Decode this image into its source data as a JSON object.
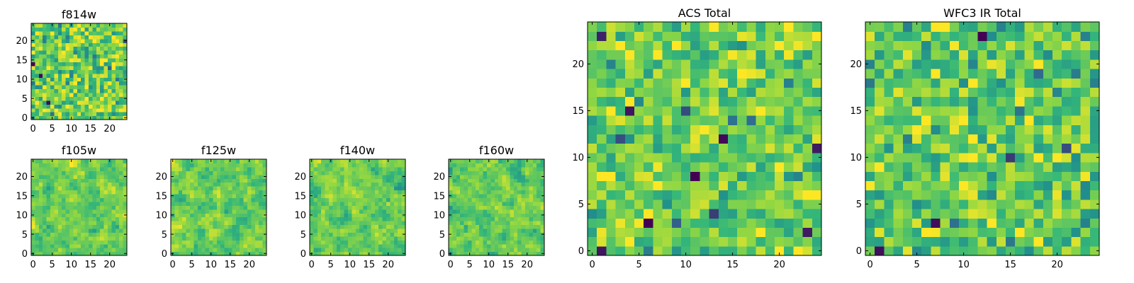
{
  "figure": {
    "background": "#ffffff",
    "colormap": [
      "#440154",
      "#31688e",
      "#21918c",
      "#35b779",
      "#90d743",
      "#fde725"
    ]
  },
  "chart_data": [
    {
      "type": "heatmap",
      "id": "f814w",
      "title": "f814w",
      "grid_size": 25,
      "xticks": [
        0,
        5,
        10,
        15,
        20
      ],
      "yticks": [
        0,
        5,
        10,
        15,
        20
      ],
      "xlim": [
        -0.5,
        24.5
      ],
      "ylim": [
        -0.5,
        24.5
      ],
      "origin": "lower",
      "seed": 11,
      "mean": 0.72,
      "spread": 0.22,
      "smooth": 0
    },
    {
      "type": "heatmap",
      "id": "f105w",
      "title": "f105w",
      "grid_size": 25,
      "xticks": [
        0,
        5,
        10,
        15,
        20
      ],
      "yticks": [
        0,
        5,
        10,
        15,
        20
      ],
      "xlim": [
        -0.5,
        24.5
      ],
      "ylim": [
        -0.5,
        24.5
      ],
      "origin": "lower",
      "seed": 23,
      "mean": 0.74,
      "spread": 0.2,
      "smooth": 1
    },
    {
      "type": "heatmap",
      "id": "f125w",
      "title": "f125w",
      "grid_size": 25,
      "xticks": [
        0,
        5,
        10,
        15,
        20
      ],
      "yticks": [
        0,
        5,
        10,
        15,
        20
      ],
      "xlim": [
        -0.5,
        24.5
      ],
      "ylim": [
        -0.5,
        24.5
      ],
      "origin": "lower",
      "seed": 37,
      "mean": 0.74,
      "spread": 0.22,
      "smooth": 1
    },
    {
      "type": "heatmap",
      "id": "f140w",
      "title": "f140w",
      "grid_size": 25,
      "xticks": [
        0,
        5,
        10,
        15,
        20
      ],
      "yticks": [
        0,
        5,
        10,
        15,
        20
      ],
      "xlim": [
        -0.5,
        24.5
      ],
      "ylim": [
        -0.5,
        24.5
      ],
      "origin": "lower",
      "seed": 41,
      "mean": 0.73,
      "spread": 0.22,
      "smooth": 1
    },
    {
      "type": "heatmap",
      "id": "f160w",
      "title": "f160w",
      "grid_size": 25,
      "xticks": [
        0,
        5,
        10,
        15,
        20
      ],
      "yticks": [
        0,
        5,
        10,
        15,
        20
      ],
      "xlim": [
        -0.5,
        24.5
      ],
      "ylim": [
        -0.5,
        24.5
      ],
      "origin": "lower",
      "seed": 53,
      "mean": 0.73,
      "spread": 0.22,
      "smooth": 1
    },
    {
      "type": "heatmap",
      "id": "acs-total",
      "title": "ACS Total",
      "grid_size": 25,
      "xticks": [
        0,
        5,
        10,
        15,
        20
      ],
      "yticks": [
        0,
        5,
        10,
        15,
        20
      ],
      "xlim": [
        -0.5,
        24.5
      ],
      "ylim": [
        -0.5,
        24.5
      ],
      "origin": "lower",
      "seed": 67,
      "mean": 0.74,
      "spread": 0.18,
      "smooth": 0
    },
    {
      "type": "heatmap",
      "id": "wfc3-ir-total",
      "title": "WFC3 IR Total",
      "grid_size": 25,
      "xticks": [
        0,
        5,
        10,
        15,
        20
      ],
      "yticks": [
        0,
        5,
        10,
        15,
        20
      ],
      "xlim": [
        -0.5,
        24.5
      ],
      "ylim": [
        -0.5,
        24.5
      ],
      "origin": "lower",
      "seed": 79,
      "mean": 0.7,
      "spread": 0.2,
      "smooth": 0
    }
  ]
}
